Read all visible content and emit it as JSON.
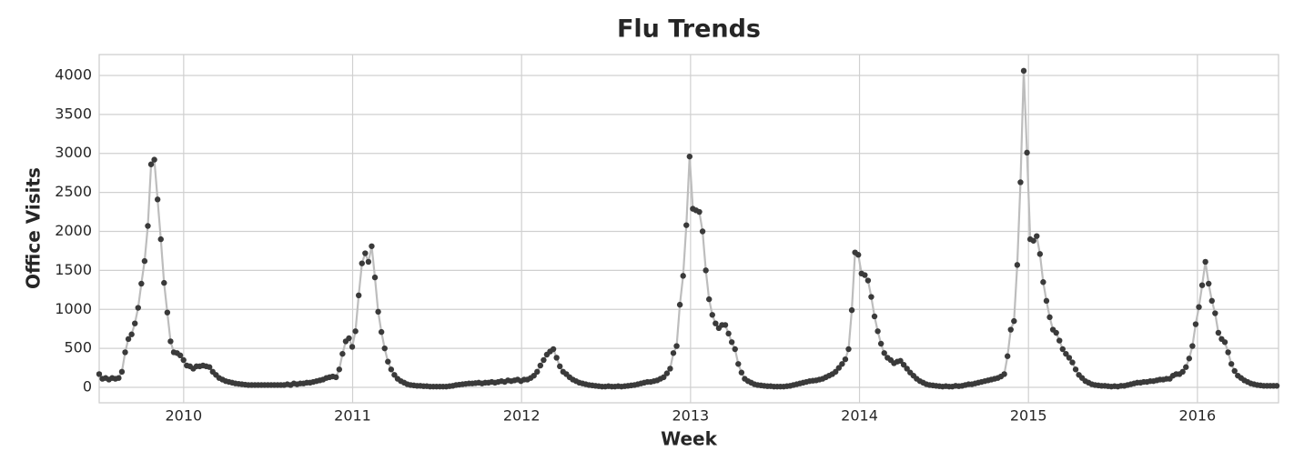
{
  "chart_data": {
    "type": "line",
    "title": "Flu Trends",
    "xlabel": "Week",
    "ylabel": "Office Visits",
    "xlim": [
      2009.5,
      2016.48
    ],
    "ylim": [
      -198,
      4268
    ],
    "xticks": [
      2010,
      2011,
      2012,
      2013,
      2014,
      2015,
      2016
    ],
    "yticks": [
      0,
      500,
      1000,
      1500,
      2000,
      2500,
      3000,
      3500,
      4000
    ],
    "grid": true,
    "x": [
      2009.5,
      2009.5192,
      2009.5384,
      2009.5576,
      2009.5768,
      2009.596,
      2009.6152,
      2009.6344,
      2009.6536,
      2009.6728,
      2009.692,
      2009.7112,
      2009.7304,
      2009.7496,
      2009.7688,
      2009.788,
      2009.8072,
      2009.8264,
      2009.8456,
      2009.8648,
      2009.884,
      2009.9032,
      2009.9224,
      2009.9416,
      2009.9608,
      2009.98,
      2009.9992,
      2010.0184,
      2010.0376,
      2010.0568,
      2010.076,
      2010.0952,
      2010.1144,
      2010.1336,
      2010.1528,
      2010.172,
      2010.1912,
      2010.2104,
      2010.2296,
      2010.2488,
      2010.268,
      2010.2872,
      2010.3064,
      2010.3256,
      2010.3448,
      2010.364,
      2010.3832,
      2010.4024,
      2010.4216,
      2010.4408,
      2010.46,
      2010.4792,
      2010.4984,
      2010.5176,
      2010.5368,
      2010.556,
      2010.5752,
      2010.5944,
      2010.6136,
      2010.6328,
      2010.652,
      2010.6712,
      2010.6904,
      2010.7096,
      2010.7288,
      2010.748,
      2010.7672,
      2010.7864,
      2010.8056,
      2010.8248,
      2010.844,
      2010.8632,
      2010.8824,
      2010.9016,
      2010.9208,
      2010.94,
      2010.9592,
      2010.9784,
      2010.9976,
      2011.0168,
      2011.036,
      2011.0552,
      2011.0744,
      2011.0936,
      2011.1128,
      2011.132,
      2011.1512,
      2011.1704,
      2011.1896,
      2011.2088,
      2011.228,
      2011.2472,
      2011.2664,
      2011.2856,
      2011.3048,
      2011.324,
      2011.3432,
      2011.3624,
      2011.3816,
      2011.4008,
      2011.42,
      2011.4392,
      2011.4584,
      2011.4776,
      2011.4968,
      2011.516,
      2011.5352,
      2011.5544,
      2011.5736,
      2011.5928,
      2011.612,
      2011.6312,
      2011.6504,
      2011.6696,
      2011.6888,
      2011.708,
      2011.7272,
      2011.7464,
      2011.7656,
      2011.7848,
      2011.804,
      2011.8232,
      2011.8424,
      2011.8616,
      2011.8808,
      2011.9,
      2011.9192,
      2011.9384,
      2011.9576,
      2011.9768,
      2011.996,
      2012.0152,
      2012.0344,
      2012.0536,
      2012.0728,
      2012.092,
      2012.1112,
      2012.1304,
      2012.1496,
      2012.1688,
      2012.188,
      2012.2072,
      2012.2264,
      2012.2456,
      2012.2648,
      2012.284,
      2012.3032,
      2012.3224,
      2012.3416,
      2012.3608,
      2012.38,
      2012.3992,
      2012.4184,
      2012.4376,
      2012.4568,
      2012.476,
      2012.4952,
      2012.5144,
      2012.5336,
      2012.5528,
      2012.572,
      2012.5912,
      2012.6104,
      2012.6296,
      2012.6488,
      2012.668,
      2012.6872,
      2012.7064,
      2012.7256,
      2012.7448,
      2012.764,
      2012.7832,
      2012.8024,
      2012.8216,
      2012.8408,
      2012.86,
      2012.8792,
      2012.8984,
      2012.9176,
      2012.9368,
      2012.956,
      2012.9752,
      2012.9944,
      2013.0136,
      2013.0328,
      2013.052,
      2013.0712,
      2013.0904,
      2013.1096,
      2013.1288,
      2013.148,
      2013.1672,
      2013.1864,
      2013.2056,
      2013.2248,
      2013.244,
      2013.2632,
      2013.2824,
      2013.3016,
      2013.3208,
      2013.34,
      2013.3592,
      2013.3784,
      2013.3976,
      2013.4168,
      2013.436,
      2013.4552,
      2013.4744,
      2013.4936,
      2013.5128,
      2013.532,
      2013.5512,
      2013.5704,
      2013.5896,
      2013.6088,
      2013.628,
      2013.6472,
      2013.6664,
      2013.6856,
      2013.7048,
      2013.724,
      2013.7432,
      2013.7624,
      2013.7816,
      2013.8008,
      2013.82,
      2013.8392,
      2013.8584,
      2013.8776,
      2013.8968,
      2013.916,
      2013.9352,
      2013.9544,
      2013.9736,
      2013.9928,
      2014.012,
      2014.0312,
      2014.0504,
      2014.0696,
      2014.0888,
      2014.108,
      2014.1272,
      2014.1464,
      2014.1656,
      2014.1848,
      2014.204,
      2014.2232,
      2014.2424,
      2014.2616,
      2014.2808,
      2014.3,
      2014.3192,
      2014.3384,
      2014.3576,
      2014.3768,
      2014.396,
      2014.4152,
      2014.4344,
      2014.4536,
      2014.4728,
      2014.492,
      2014.5112,
      2014.5304,
      2014.5496,
      2014.5688,
      2014.588,
      2014.6072,
      2014.6264,
      2014.6456,
      2014.6648,
      2014.684,
      2014.7032,
      2014.7224,
      2014.7416,
      2014.7608,
      2014.78,
      2014.7992,
      2014.8184,
      2014.8376,
      2014.8568,
      2014.876,
      2014.8952,
      2014.9144,
      2014.9336,
      2014.9528,
      2014.972,
      2014.9912,
      2015.0104,
      2015.0296,
      2015.0488,
      2015.068,
      2015.0872,
      2015.1064,
      2015.1256,
      2015.1448,
      2015.164,
      2015.1832,
      2015.2024,
      2015.2216,
      2015.2408,
      2015.26,
      2015.2792,
      2015.2984,
      2015.3176,
      2015.3368,
      2015.356,
      2015.3752,
      2015.3944,
      2015.4136,
      2015.4328,
      2015.452,
      2015.4712,
      2015.4904,
      2015.5096,
      2015.5288,
      2015.548,
      2015.5672,
      2015.5864,
      2015.6056,
      2015.6248,
      2015.644,
      2015.6632,
      2015.6824,
      2015.7016,
      2015.7208,
      2015.74,
      2015.7592,
      2015.7784,
      2015.7976,
      2015.8168,
      2015.836,
      2015.8552,
      2015.8744,
      2015.8936,
      2015.9128,
      2015.932,
      2015.9512,
      2015.9704,
      2015.9896,
      2016.0088,
      2016.028,
      2016.0472,
      2016.0664,
      2016.0856,
      2016.1048,
      2016.124,
      2016.1432,
      2016.1624,
      2016.1816,
      2016.2008,
      2016.22,
      2016.2392,
      2016.2584,
      2016.2776,
      2016.2968,
      2016.316,
      2016.3352,
      2016.3544,
      2016.3736,
      2016.3928,
      2016.412,
      2016.4312,
      2016.4504,
      2016.4696
    ],
    "series": [
      {
        "line_color": "#bdbdbd",
        "color": "#3a3a3a",
        "values": [
          170,
          110,
          120,
          100,
          120,
          110,
          120,
          200,
          450,
          620,
          680,
          820,
          1020,
          1330,
          1620,
          2070,
          2860,
          2920,
          2410,
          1900,
          1340,
          960,
          590,
          450,
          440,
          410,
          350,
          280,
          270,
          240,
          270,
          270,
          280,
          270,
          260,
          200,
          160,
          120,
          100,
          80,
          70,
          60,
          50,
          45,
          40,
          35,
          30,
          30,
          30,
          30,
          30,
          30,
          30,
          30,
          30,
          30,
          30,
          30,
          40,
          30,
          50,
          40,
          50,
          50,
          60,
          60,
          70,
          80,
          90,
          100,
          120,
          130,
          140,
          130,
          230,
          430,
          590,
          630,
          520,
          720,
          1180,
          1590,
          1720,
          1610,
          1810,
          1410,
          970,
          710,
          500,
          330,
          230,
          160,
          110,
          80,
          60,
          40,
          30,
          25,
          20,
          20,
          15,
          15,
          10,
          10,
          10,
          10,
          10,
          10,
          15,
          20,
          30,
          35,
          40,
          45,
          50,
          50,
          55,
          60,
          50,
          60,
          60,
          70,
          60,
          70,
          80,
          70,
          90,
          80,
          90,
          100,
          80,
          100,
          100,
          120,
          150,
          200,
          280,
          350,
          420,
          460,
          490,
          380,
          270,
          200,
          170,
          130,
          100,
          80,
          60,
          50,
          40,
          30,
          25,
          20,
          15,
          10,
          10,
          15,
          10,
          10,
          15,
          10,
          15,
          20,
          25,
          30,
          40,
          50,
          60,
          70,
          70,
          80,
          90,
          110,
          130,
          180,
          240,
          440,
          530,
          1060,
          1430,
          2080,
          2960,
          2290,
          2270,
          2250,
          2000,
          1500,
          1130,
          930,
          820,
          760,
          800,
          800,
          690,
          580,
          490,
          300,
          190,
          110,
          80,
          60,
          40,
          30,
          25,
          20,
          15,
          15,
          10,
          10,
          10,
          10,
          15,
          20,
          30,
          40,
          50,
          60,
          70,
          80,
          85,
          90,
          100,
          110,
          130,
          150,
          170,
          200,
          250,
          300,
          360,
          490,
          990,
          1730,
          1700,
          1460,
          1440,
          1370,
          1160,
          910,
          720,
          560,
          440,
          380,
          350,
          310,
          330,
          340,
          290,
          240,
          190,
          150,
          110,
          80,
          60,
          40,
          30,
          25,
          20,
          15,
          10,
          15,
          10,
          10,
          20,
          15,
          20,
          30,
          40,
          40,
          50,
          60,
          70,
          80,
          90,
          100,
          110,
          120,
          140,
          170,
          400,
          740,
          850,
          1570,
          2630,
          4060,
          3010,
          1900,
          1880,
          1940,
          1710,
          1350,
          1110,
          900,
          740,
          700,
          600,
          490,
          430,
          380,
          320,
          230,
          160,
          120,
          80,
          60,
          40,
          30,
          25,
          20,
          20,
          15,
          10,
          15,
          10,
          20,
          20,
          30,
          40,
          50,
          60,
          60,
          70,
          70,
          80,
          80,
          90,
          100,
          100,
          110,
          110,
          150,
          170,
          170,
          200,
          260,
          370,
          530,
          810,
          1030,
          1310,
          1610,
          1330,
          1110,
          950,
          700,
          620,
          580,
          450,
          300,
          210,
          150,
          120,
          90,
          70,
          50,
          40,
          30,
          25,
          20,
          20,
          20,
          20,
          20
        ]
      }
    ]
  }
}
